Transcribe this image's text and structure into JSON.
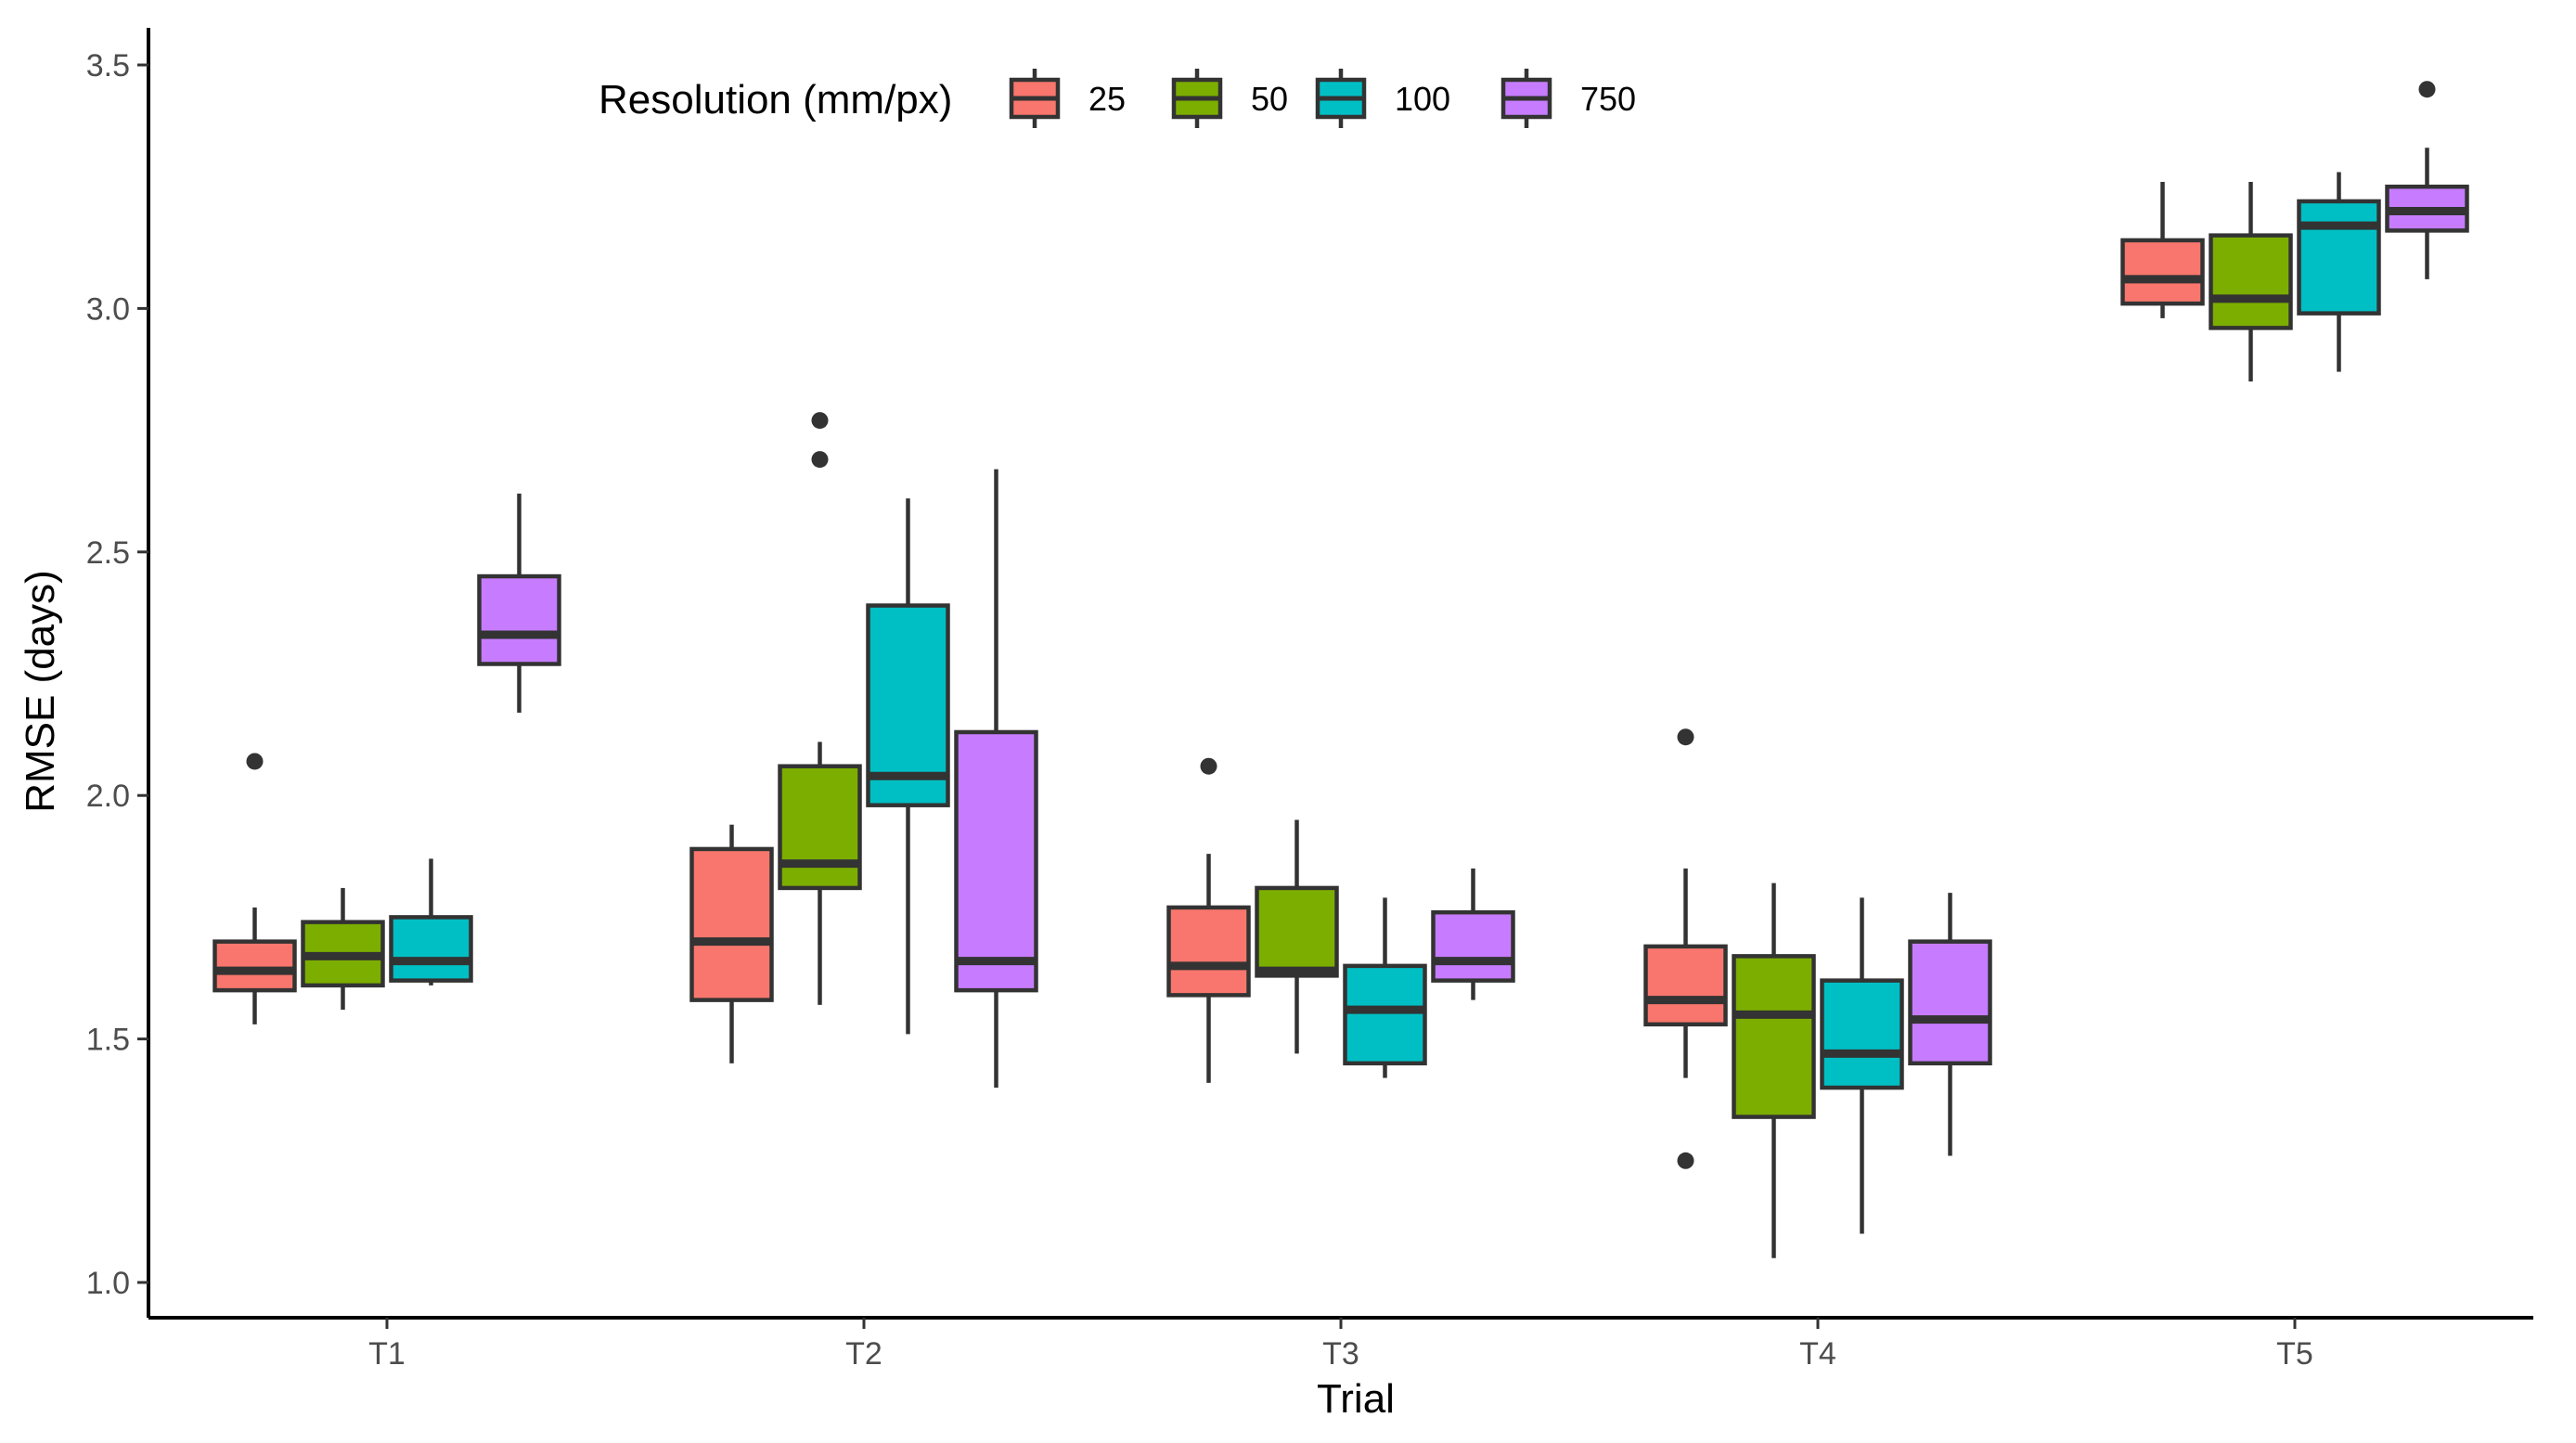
{
  "chart_data": {
    "type": "boxplot",
    "xlabel": "Trial",
    "ylabel": "RMSE (days)",
    "ylim": [
      0.92,
      3.58
    ],
    "yticks": [
      1.0,
      1.5,
      2.0,
      2.5,
      3.0,
      3.5
    ],
    "ytick_labels": [
      "1.0",
      "1.5",
      "2.0",
      "2.5",
      "3.0",
      "3.5"
    ],
    "categories": [
      "T1",
      "T2",
      "T3",
      "T4",
      "T5"
    ],
    "legend": {
      "title": "Resolution (mm/px)",
      "placement": "top-left inside plot",
      "entries": [
        "25",
        "50",
        "100",
        "750"
      ]
    },
    "series": [
      {
        "name": "25",
        "color": "#F8766D",
        "boxes": [
          {
            "category": "T1",
            "min": 1.53,
            "q1": 1.6,
            "median": 1.64,
            "q3": 1.7,
            "max": 1.77,
            "outliers": [
              2.07
            ]
          },
          {
            "category": "T2",
            "min": 1.45,
            "q1": 1.58,
            "median": 1.7,
            "q3": 1.89,
            "max": 1.94,
            "outliers": []
          },
          {
            "category": "T3",
            "min": 1.41,
            "q1": 1.59,
            "median": 1.65,
            "q3": 1.77,
            "max": 1.88,
            "outliers": [
              2.06
            ]
          },
          {
            "category": "T4",
            "min": 1.42,
            "q1": 1.53,
            "median": 1.58,
            "q3": 1.69,
            "max": 1.85,
            "outliers": [
              2.12,
              1.25
            ]
          },
          {
            "category": "T5",
            "min": 2.98,
            "q1": 3.01,
            "median": 3.06,
            "q3": 3.14,
            "max": 3.26,
            "outliers": []
          }
        ]
      },
      {
        "name": "50",
        "color": "#7CAE00",
        "boxes": [
          {
            "category": "T1",
            "min": 1.56,
            "q1": 1.61,
            "median": 1.67,
            "q3": 1.74,
            "max": 1.81,
            "outliers": []
          },
          {
            "category": "T2",
            "min": 1.57,
            "q1": 1.81,
            "median": 1.86,
            "q3": 2.06,
            "max": 2.11,
            "outliers": [
              2.77,
              2.69
            ]
          },
          {
            "category": "T3",
            "min": 1.47,
            "q1": 1.63,
            "median": 1.64,
            "q3": 1.81,
            "max": 1.95,
            "outliers": []
          },
          {
            "category": "T4",
            "min": 1.05,
            "q1": 1.34,
            "median": 1.55,
            "q3": 1.67,
            "max": 1.82,
            "outliers": []
          },
          {
            "category": "T5",
            "min": 2.85,
            "q1": 2.96,
            "median": 3.02,
            "q3": 3.15,
            "max": 3.26,
            "outliers": []
          }
        ]
      },
      {
        "name": "100",
        "color": "#00BFC4",
        "boxes": [
          {
            "category": "T1",
            "min": 1.61,
            "q1": 1.62,
            "median": 1.66,
            "q3": 1.75,
            "max": 1.87,
            "outliers": []
          },
          {
            "category": "T2",
            "min": 1.51,
            "q1": 1.98,
            "median": 2.04,
            "q3": 2.39,
            "max": 2.61,
            "outliers": []
          },
          {
            "category": "T3",
            "min": 1.42,
            "q1": 1.45,
            "median": 1.56,
            "q3": 1.65,
            "max": 1.79,
            "outliers": []
          },
          {
            "category": "T4",
            "min": 1.1,
            "q1": 1.4,
            "median": 1.47,
            "q3": 1.62,
            "max": 1.79,
            "outliers": []
          },
          {
            "category": "T5",
            "min": 2.87,
            "q1": 2.99,
            "median": 3.17,
            "q3": 3.22,
            "max": 3.28,
            "outliers": []
          }
        ]
      },
      {
        "name": "750",
        "color": "#C77CFF",
        "boxes": [
          {
            "category": "T1",
            "min": 2.17,
            "q1": 2.27,
            "median": 2.33,
            "q3": 2.45,
            "max": 2.62,
            "outliers": []
          },
          {
            "category": "T2",
            "min": 1.4,
            "q1": 1.6,
            "median": 1.66,
            "q3": 2.13,
            "max": 2.67,
            "outliers": []
          },
          {
            "category": "T3",
            "min": 1.58,
            "q1": 1.62,
            "median": 1.66,
            "q3": 1.76,
            "max": 1.85,
            "outliers": []
          },
          {
            "category": "T4",
            "min": 1.26,
            "q1": 1.45,
            "median": 1.54,
            "q3": 1.7,
            "max": 1.8,
            "outliers": []
          },
          {
            "category": "T5",
            "min": 3.06,
            "q1": 3.16,
            "median": 3.2,
            "q3": 3.25,
            "max": 3.33,
            "outliers": [
              3.45
            ]
          }
        ]
      }
    ]
  }
}
